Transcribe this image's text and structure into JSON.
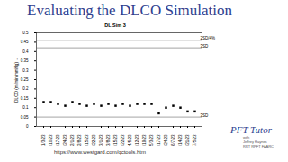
{
  "title": "Evaluating the DLCO Simulation",
  "chart_data": {
    "type": "scatter",
    "title": "DL Sim 3",
    "y_label": "DLCO (ml/min/mmHg)",
    "categories": [
      "1/3/23",
      "1/10/23",
      "1/17/23",
      "1/24/23",
      "2/1/23",
      "2/8/23",
      "2/15/23",
      "2/22/23",
      "3/1/23",
      "3/8/23",
      "3/15/23",
      "3/22/23",
      "4/5/23",
      "4/12/23",
      "4/19/23",
      "5/3/23",
      "5/17/23",
      "5/24/23",
      "6/7/23",
      "6/14/23",
      "6/21/23",
      "7/5/23"
    ],
    "values": [
      0.13,
      0.13,
      0.12,
      0.11,
      0.13,
      0.12,
      0.11,
      0.12,
      0.11,
      0.12,
      0.11,
      0.12,
      0.11,
      0.12,
      0.12,
      0.12,
      0.07,
      0.1,
      0.11,
      0.1,
      0.08,
      0.08
    ],
    "color": "#000000",
    "marker": "square",
    "ylim": [
      0,
      0.5
    ],
    "yticks": [
      0,
      0.05,
      0.1,
      0.15,
      0.2,
      0.25,
      0.3,
      0.35,
      0.4,
      0.45,
      0.5
    ],
    "reference_lines": [
      {
        "value": 0.46,
        "label": "2SD/4%"
      },
      {
        "value": 0.42,
        "label": "3SD"
      },
      {
        "value": 0.05,
        "label": "3SD"
      }
    ]
  },
  "footer_url": "https://www.westgard.com/qctools.htm",
  "logo": {
    "name": "PFT Tutor",
    "lines": [
      "with",
      "Jeffrey Haynes",
      "RRT RPFT FAARC"
    ]
  }
}
